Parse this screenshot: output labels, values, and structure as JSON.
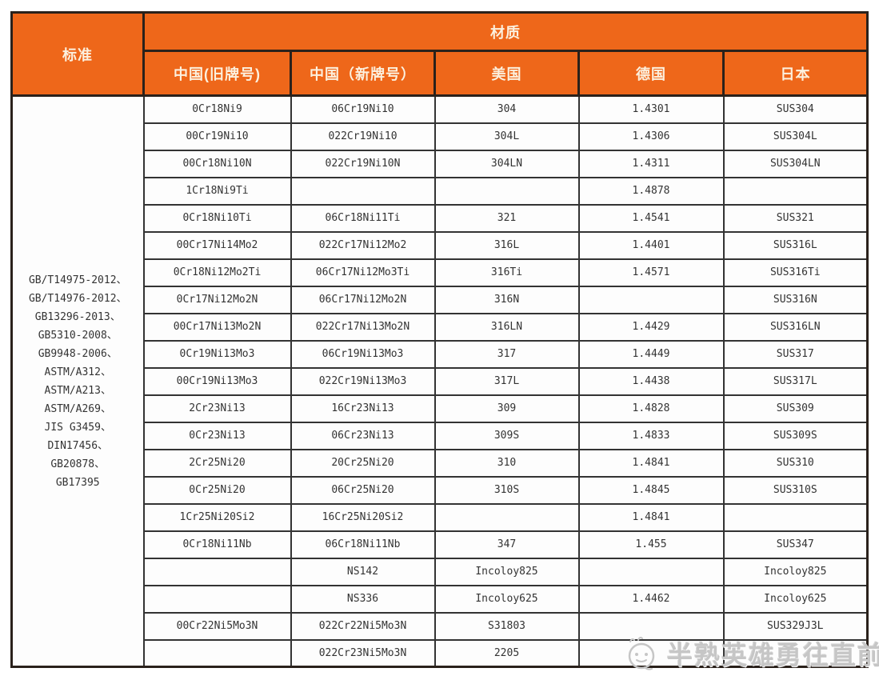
{
  "table": {
    "header": {
      "standard_label": "标准",
      "material_label": "材质",
      "columns": [
        "中国(旧牌号)",
        "中国（新牌号）",
        "美国",
        "德国",
        "日本"
      ]
    },
    "standards": [
      "GB/T14975-2012、",
      "GB/T14976-2012、",
      "GB13296-2013、",
      "GB5310-2008、",
      "GB9948-2006、",
      "ASTM/A312、",
      "ASTM/A213、",
      "ASTM/A269、",
      "JIS G3459、",
      "DIN17456、",
      "GB20878、",
      "GB17395"
    ],
    "rows": [
      [
        "0Cr18Ni9",
        "06Cr19Ni10",
        "304",
        "1.4301",
        "SUS304"
      ],
      [
        "00Cr19Ni10",
        "022Cr19Ni10",
        "304L",
        "1.4306",
        "SUS304L"
      ],
      [
        "00Cr18Ni10N",
        "022Cr19Ni10N",
        "304LN",
        "1.4311",
        "SUS304LN"
      ],
      [
        "1Cr18Ni9Ti",
        "",
        "",
        "1.4878",
        ""
      ],
      [
        "0Cr18Ni10Ti",
        "06Cr18Ni11Ti",
        "321",
        "1.4541",
        "SUS321"
      ],
      [
        "00Cr17Ni14Mo2",
        "022Cr17Ni12Mo2",
        "316L",
        "1.4401",
        "SUS316L"
      ],
      [
        "0Cr18Ni12Mo2Ti",
        "06Cr17Ni12Mo3Ti",
        "316Ti",
        "1.4571",
        "SUS316Ti"
      ],
      [
        "0Cr17Ni12Mo2N",
        "06Cr17Ni12Mo2N",
        "316N",
        "",
        "SUS316N"
      ],
      [
        "00Cr17Ni13Mo2N",
        "022Cr17Ni13Mo2N",
        "316LN",
        "1.4429",
        "SUS316LN"
      ],
      [
        "0Cr19Ni13Mo3",
        "06Cr19Ni13Mo3",
        "317",
        "1.4449",
        "SUS317"
      ],
      [
        "00Cr19Ni13Mo3",
        "022Cr19Ni13Mo3",
        "317L",
        "1.4438",
        "SUS317L"
      ],
      [
        "2Cr23Ni13",
        "16Cr23Ni13",
        "309",
        "1.4828",
        "SUS309"
      ],
      [
        "0Cr23Ni13",
        "06Cr23Ni13",
        "309S",
        "1.4833",
        "SUS309S"
      ],
      [
        "2Cr25Ni20",
        "20Cr25Ni20",
        "310",
        "1.4841",
        "SUS310"
      ],
      [
        "0Cr25Ni20",
        "06Cr25Ni20",
        "310S",
        "1.4845",
        "SUS310S"
      ],
      [
        "1Cr25Ni20Si2",
        "16Cr25Ni20Si2",
        "",
        "1.4841",
        ""
      ],
      [
        "0Cr18Ni11Nb",
        "06Cr18Ni11Nb",
        "347",
        "1.455",
        "SUS347"
      ],
      [
        "",
        "NS142",
        "Incoloy825",
        "",
        "Incoloy825"
      ],
      [
        "",
        "NS336",
        "Incoloy625",
        "1.4462",
        "Incoloy625"
      ],
      [
        "00Cr22Ni5Mo3N",
        "022Cr22Ni5Mo3N",
        "S31803",
        "",
        "SUS329J3L"
      ],
      [
        "",
        "022Cr23Ni5Mo3N",
        "2205",
        "",
        ""
      ]
    ]
  },
  "watermark": {
    "text": "半熟英雄勇往直前",
    "icon": "chick-face-icon"
  },
  "colors": {
    "header_bg": "#ee671a",
    "header_text": "#fcf0de",
    "border_dark": "#2a211b",
    "cell_border": "#333333",
    "cell_text": "#333333",
    "watermark": "#c6c6c6"
  }
}
